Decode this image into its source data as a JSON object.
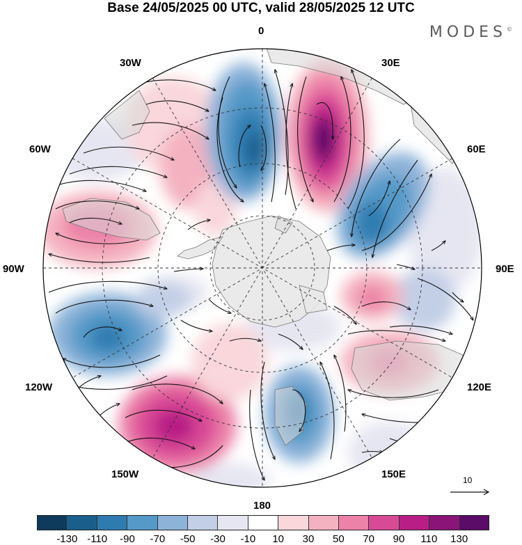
{
  "title": "Base 24/05/2025 00 UTC, valid 28/05/2025 12 UTC",
  "brand": "MODES",
  "brand_mark": "©",
  "longitude_labels": {
    "top": "0",
    "ne": "30E",
    "ene": "60E",
    "right": "90E",
    "ese": "120E",
    "se": "150E",
    "bottom": "180",
    "sw": "150W",
    "wsw": "120W",
    "left": "90W",
    "wnw": "60W",
    "nw": "30W"
  },
  "reference_vector": {
    "label": "10"
  },
  "colorbar": {
    "colors": [
      "#0e3a5c",
      "#1a5f8c",
      "#2e7bb0",
      "#5599c8",
      "#8db3d9",
      "#c2cfe6",
      "#e6e6f2",
      "#ffffff",
      "#f9d7db",
      "#f4b2c0",
      "#ec82a8",
      "#d94a96",
      "#b81e85",
      "#8b1478",
      "#5a0c68"
    ],
    "tick_labels": [
      "-130",
      "-110",
      "-90",
      "-70",
      "-50",
      "-30",
      "-10",
      "10",
      "30",
      "50",
      "70",
      "90",
      "110",
      "130"
    ]
  },
  "palette": {
    "land": "#d9d9d9",
    "antarctica": "#e8e8e8",
    "graticule": "#333333",
    "vector": "#111111"
  }
}
